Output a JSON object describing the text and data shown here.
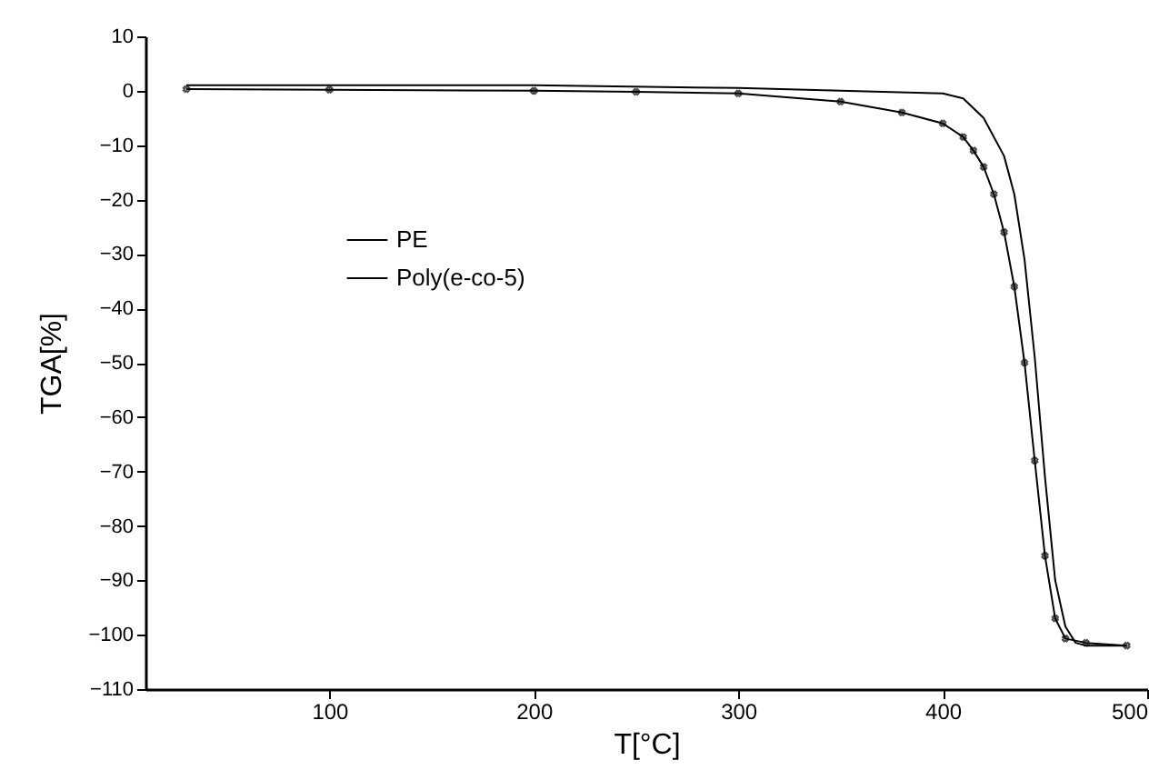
{
  "chart_data": {
    "type": "line",
    "xlabel": "T[°C]",
    "ylabel": "TGA[%]",
    "xlim": [
      10,
      500
    ],
    "xticks": [
      100,
      200,
      300,
      400,
      500
    ],
    "ylim": [
      -110,
      10
    ],
    "yticks": [
      -110,
      -100,
      -90,
      -80,
      -70,
      -60,
      -50,
      -40,
      -30,
      -20,
      -10,
      0,
      10
    ],
    "grid": false,
    "legend": "top left",
    "series": [
      {
        "name": "PE",
        "color": "#000000",
        "marker": "none",
        "x": [
          30,
          100,
          200,
          300,
          350,
          400,
          410,
          420,
          430,
          435,
          440,
          445,
          450,
          455,
          460,
          465,
          470,
          490
        ],
        "values": [
          1,
          1,
          1,
          0.5,
          0,
          -0.5,
          -1.4,
          -5,
          -12,
          -19,
          -31,
          -49,
          -71,
          -90,
          -98.5,
          -101.5,
          -102,
          -102
        ]
      },
      {
        "name": "Poly(e-co-5)",
        "color": "#000000",
        "marker": "cross",
        "x": [
          30,
          100,
          200,
          250,
          300,
          350,
          380,
          400,
          410,
          415,
          420,
          425,
          430,
          435,
          440,
          445,
          450,
          455,
          460,
          470,
          490
        ],
        "values": [
          0.3,
          0.2,
          0,
          -0.2,
          -0.5,
          -2,
          -4,
          -6,
          -8.5,
          -11,
          -14,
          -19,
          -26,
          -36,
          -50,
          -68,
          -85.5,
          -97,
          -100.7,
          -101.5,
          -102
        ]
      }
    ]
  }
}
